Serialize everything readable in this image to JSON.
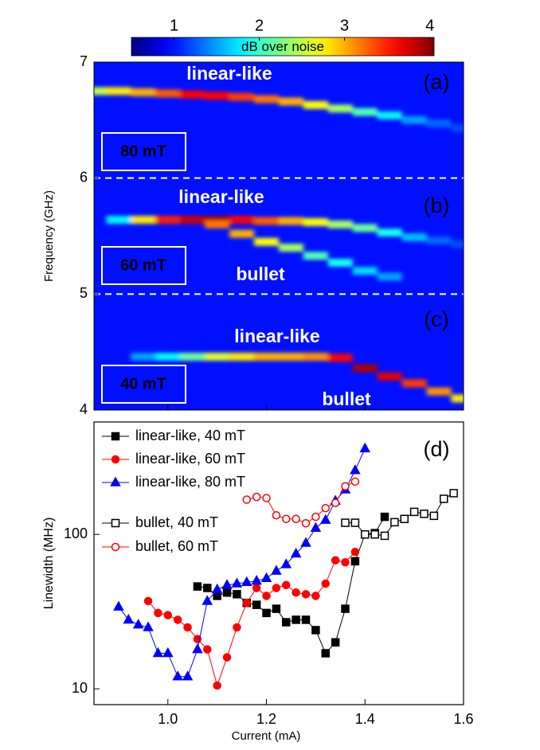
{
  "chart_data": [
    {
      "type": "heatmap",
      "colorbar_label": "dB over noise",
      "clim": [
        0.5,
        4.05
      ],
      "cticks": [
        1,
        2,
        3,
        4
      ],
      "ylabel": "Frequency (GHz)",
      "ylim": [
        4,
        7
      ],
      "yticks": [
        4,
        5,
        6,
        7
      ],
      "xlim": [
        0.85,
        1.6
      ],
      "xticks": [
        1,
        1.2,
        1.4
      ],
      "separators": [
        6,
        5
      ],
      "x": [
        0.85,
        0.9,
        0.95,
        1.0,
        1.05,
        1.1,
        1.15,
        1.2,
        1.25,
        1.3,
        1.35,
        1.4,
        1.45,
        1.5,
        1.55,
        1.6
      ],
      "ridges": [
        {
          "name": "linear-like",
          "freq": [
            6.75,
            6.75,
            6.74,
            6.73,
            6.72,
            6.71,
            6.7,
            6.68,
            6.66,
            6.63,
            6.6,
            6.57,
            6.54,
            6.5,
            6.47,
            6.43
          ],
          "intensity": [
            2.5,
            2.8,
            3,
            3.3,
            3.6,
            3.6,
            3.4,
            3.2,
            3,
            2.7,
            2.4,
            2.1,
            1.8,
            1.5,
            1.3,
            1.2
          ]
        },
        {
          "name": "linear-like",
          "freq": [
            null,
            5.64,
            5.64,
            5.64,
            5.64,
            5.64,
            5.64,
            5.63,
            5.63,
            5.62,
            5.6,
            5.57,
            5.53,
            5.49,
            5.46,
            5.43
          ],
          "intensity": [
            null,
            1.8,
            2.8,
            3.5,
            3.8,
            3.9,
            3.6,
            3.3,
            3.0,
            2.7,
            2.4,
            2.2,
            1.9,
            1.6,
            1.3,
            1.2
          ]
        },
        {
          "name": "bullet",
          "freq": [
            null,
            null,
            null,
            null,
            null,
            5.6,
            5.52,
            5.45,
            5.4,
            5.33,
            5.27,
            5.2,
            5.15,
            null,
            null,
            null
          ],
          "intensity": [
            null,
            null,
            null,
            null,
            null,
            3.2,
            3.0,
            2.7,
            2.4,
            2.1,
            1.9,
            1.7,
            1.5,
            null,
            null,
            null
          ]
        },
        {
          "name": "linear-like",
          "freq": [
            null,
            null,
            4.46,
            4.46,
            4.46,
            4.46,
            4.46,
            4.46,
            4.46,
            4.46,
            4.45,
            null,
            null,
            null,
            null,
            null
          ],
          "intensity": [
            null,
            null,
            1.5,
            1.8,
            2.2,
            2.6,
            2.8,
            3.0,
            3.0,
            3.1,
            3.6,
            null,
            null,
            null,
            null,
            null
          ]
        },
        {
          "name": "bullet",
          "freq": [
            null,
            null,
            null,
            null,
            null,
            null,
            null,
            null,
            null,
            null,
            null,
            4.36,
            4.29,
            4.23,
            4.16,
            4.1
          ],
          "intensity": [
            null,
            null,
            null,
            null,
            null,
            null,
            null,
            null,
            null,
            null,
            null,
            3.9,
            3.7,
            3.4,
            3.1,
            2.8
          ]
        }
      ],
      "panels": [
        {
          "label": "(a)",
          "field": "80 mT"
        },
        {
          "label": "(b)",
          "field": "60 mT"
        },
        {
          "label": "(c)",
          "field": "40 mT"
        }
      ]
    },
    {
      "type": "line",
      "label": "(d)",
      "xlabel": "Current (mA)",
      "ylabel": "Linewidth (MHz)",
      "xlim": [
        0.85,
        1.6
      ],
      "xticks": [
        {
          "value": 1.0,
          "label": "1.0"
        },
        1.2,
        1.4,
        1.6
      ],
      "ylim": [
        7.9,
        535
      ],
      "yticks": [
        10,
        100
      ],
      "log_y": true,
      "legend": "upper left",
      "series": [
        {
          "name": "linear-like, 40 mT",
          "color": "#000000",
          "marker": "square",
          "filled": true,
          "x": [
            1.06,
            1.08,
            1.1,
            1.12,
            1.14,
            1.16,
            1.18,
            1.2,
            1.22,
            1.24,
            1.26,
            1.28,
            1.3,
            1.32,
            1.34,
            1.36,
            1.38,
            1.4,
            1.42,
            1.44
          ],
          "values": [
            46,
            45,
            40,
            42,
            41,
            36,
            35,
            31,
            33,
            27,
            28,
            28,
            24,
            17,
            20,
            33,
            67,
            100,
            102,
            130
          ]
        },
        {
          "name": "linear-like, 60 mT",
          "color": "#ff0000",
          "marker": "circle",
          "filled": true,
          "x": [
            0.96,
            0.98,
            1.0,
            1.02,
            1.04,
            1.06,
            1.08,
            1.1,
            1.12,
            1.14,
            1.16,
            1.18,
            1.2,
            1.22,
            1.24,
            1.26,
            1.28,
            1.3,
            1.32,
            1.34,
            1.36,
            1.38
          ],
          "values": [
            37,
            31,
            30,
            28,
            25,
            21,
            18,
            10.5,
            16,
            25,
            36,
            45,
            40,
            45,
            47,
            42,
            41,
            40,
            48,
            68,
            66,
            77
          ]
        },
        {
          "name": "linear-like, 80 mT",
          "color": "#0000ff",
          "marker": "triangle",
          "filled": true,
          "x": [
            0.9,
            0.92,
            0.94,
            0.96,
            0.98,
            1.0,
            1.02,
            1.04,
            1.06,
            1.08,
            1.1,
            1.12,
            1.14,
            1.16,
            1.18,
            1.2,
            1.22,
            1.24,
            1.26,
            1.28,
            1.3,
            1.32,
            1.34,
            1.36,
            1.38,
            1.4
          ],
          "values": [
            34,
            28,
            26,
            25,
            17,
            17,
            12,
            12,
            18,
            37,
            44,
            47,
            48,
            49,
            50,
            52,
            58,
            64,
            75,
            88,
            110,
            124,
            165,
            195,
            260,
            360
          ]
        },
        {
          "name": "bullet, 40 mT",
          "color": "#000000",
          "marker": "square",
          "filled": false,
          "x": [
            1.36,
            1.38,
            1.4,
            1.42,
            1.44,
            1.46,
            1.48,
            1.5,
            1.52,
            1.54,
            1.56,
            1.58
          ],
          "values": [
            119,
            119,
            100,
            100,
            98,
            120,
            126,
            140,
            136,
            132,
            170,
            185
          ]
        },
        {
          "name": "bullet, 60 mT",
          "color": "#ff0000",
          "marker": "circle",
          "filled": false,
          "x": [
            1.16,
            1.18,
            1.2,
            1.22,
            1.24,
            1.26,
            1.28,
            1.3,
            1.32,
            1.34,
            1.36,
            1.38
          ],
          "values": [
            168,
            175,
            172,
            133,
            126,
            126,
            118,
            130,
            148,
            160,
            205,
            220
          ]
        }
      ]
    }
  ]
}
